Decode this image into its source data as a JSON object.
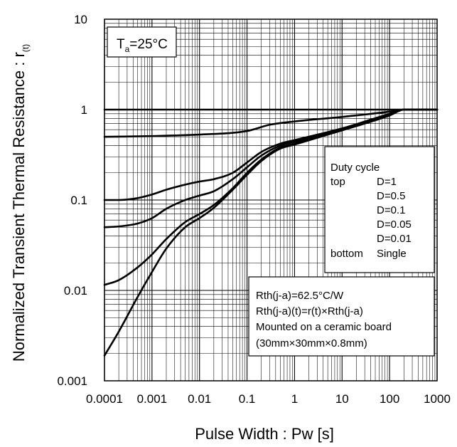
{
  "chart_data": {
    "type": "line",
    "x_scale": "log",
    "y_scale": "log",
    "xlim": [
      0.0001,
      1000
    ],
    "ylim": [
      0.001,
      10
    ],
    "grid": true,
    "xlabel": "Pulse Width : Pw [s]",
    "ylabel": {
      "main": "Normalized Transient Thermal Resistance : r",
      "subscript": "(t)"
    },
    "x_ticks": [
      "0.0001",
      "0.001",
      "0.01",
      "0.1",
      "1",
      "10",
      "100",
      "1000"
    ],
    "y_ticks": [
      "0.001",
      "0.01",
      "0.1",
      "1",
      "10"
    ],
    "temperature_box": {
      "main": "T",
      "subscript": "a",
      "value": "=25°C"
    },
    "legend": {
      "title": "Duty cycle",
      "top_label": "top",
      "bottom_label": "bottom",
      "entries": [
        "D=1",
        "D=0.5",
        "D=0.1",
        "D=0.05",
        "D=0.01",
        "Single"
      ]
    },
    "notes": [
      "Rth(j-a)=62.5°C/W",
      "Rth(j-a)(t)=r(t)×Rth(j-a)",
      "Mounted on a ceramic board",
      "(30mm×30mm×0.8mm)"
    ],
    "series": [
      {
        "name": "D=1",
        "x": [
          0.0001,
          1000
        ],
        "y": [
          1,
          1
        ]
      },
      {
        "name": "D=0.5",
        "x": [
          0.0001,
          0.001,
          0.01,
          0.1,
          0.3,
          1,
          10,
          100,
          200,
          1000
        ],
        "y": [
          0.5,
          0.51,
          0.53,
          0.58,
          0.68,
          0.74,
          0.83,
          0.95,
          1,
          1
        ]
      },
      {
        "name": "D=0.1",
        "x": [
          0.0001,
          0.0002,
          0.0005,
          0.001,
          0.002,
          0.005,
          0.01,
          0.02,
          0.05,
          0.1,
          0.2,
          0.5,
          1,
          10,
          100,
          200,
          1000
        ],
        "y": [
          0.1,
          0.1,
          0.105,
          0.115,
          0.13,
          0.148,
          0.16,
          0.17,
          0.2,
          0.26,
          0.34,
          0.42,
          0.46,
          0.62,
          0.9,
          1,
          1
        ]
      },
      {
        "name": "D=0.05",
        "x": [
          0.0001,
          0.0002,
          0.0005,
          0.001,
          0.002,
          0.005,
          0.01,
          0.02,
          0.05,
          0.1,
          0.2,
          0.5,
          1,
          10,
          100,
          200,
          1000
        ],
        "y": [
          0.05,
          0.051,
          0.055,
          0.063,
          0.08,
          0.1,
          0.112,
          0.125,
          0.17,
          0.23,
          0.31,
          0.4,
          0.44,
          0.61,
          0.88,
          1,
          1
        ]
      },
      {
        "name": "D=0.01",
        "x": [
          0.0001,
          0.0002,
          0.0005,
          0.001,
          0.002,
          0.005,
          0.01,
          0.02,
          0.05,
          0.1,
          0.2,
          0.5,
          1,
          10,
          100,
          200,
          1000
        ],
        "y": [
          0.0115,
          0.013,
          0.018,
          0.025,
          0.037,
          0.057,
          0.07,
          0.088,
          0.135,
          0.2,
          0.28,
          0.38,
          0.42,
          0.6,
          0.87,
          1,
          1
        ]
      },
      {
        "name": "Single",
        "x": [
          0.0001,
          0.0002,
          0.0005,
          0.001,
          0.002,
          0.005,
          0.01,
          0.02,
          0.05,
          0.1,
          0.2,
          0.5,
          1,
          10,
          100,
          200,
          1000
        ],
        "y": [
          0.0019,
          0.0035,
          0.0085,
          0.016,
          0.029,
          0.05,
          0.063,
          0.082,
          0.13,
          0.19,
          0.27,
          0.37,
          0.41,
          0.59,
          0.86,
          1,
          1
        ]
      }
    ]
  }
}
